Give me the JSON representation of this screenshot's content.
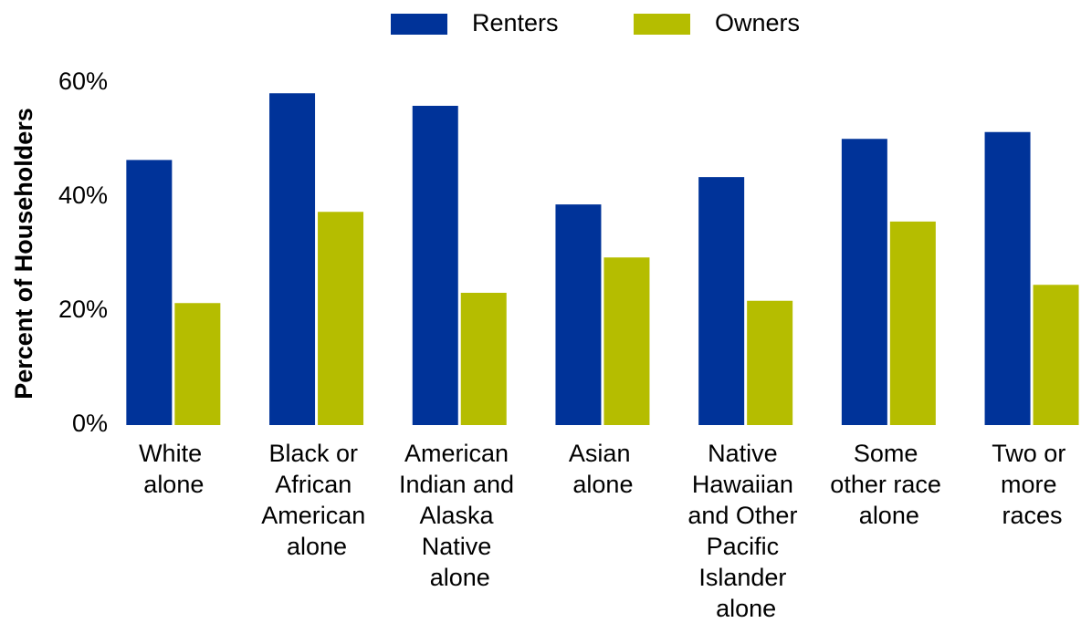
{
  "chart_data": {
    "type": "bar",
    "y_axis_label": "Percent of Householders",
    "categories": [
      "White alone",
      "Black or African American alone",
      "American Indian and Alaska Native alone",
      "Asian alone",
      "Native Hawaiian and Other Pacific Islander alone",
      "Some other race alone",
      "Two or more races"
    ],
    "series": [
      {
        "name": "Renters",
        "color": "#003399",
        "values": [
          46.5,
          58.2,
          56.0,
          38.7,
          43.5,
          50.2,
          51.4
        ]
      },
      {
        "name": "Owners",
        "color": "#b5bd00",
        "values": [
          21.4,
          37.4,
          23.2,
          29.4,
          21.8,
          35.7,
          24.6
        ]
      }
    ],
    "ylim": [
      0,
      60
    ],
    "yticks": [
      {
        "value": 0,
        "label": "0%"
      },
      {
        "value": 20,
        "label": "20%"
      },
      {
        "value": 40,
        "label": "40%"
      },
      {
        "value": 60,
        "label": "60%"
      }
    ],
    "grid": false,
    "legend": "top"
  }
}
